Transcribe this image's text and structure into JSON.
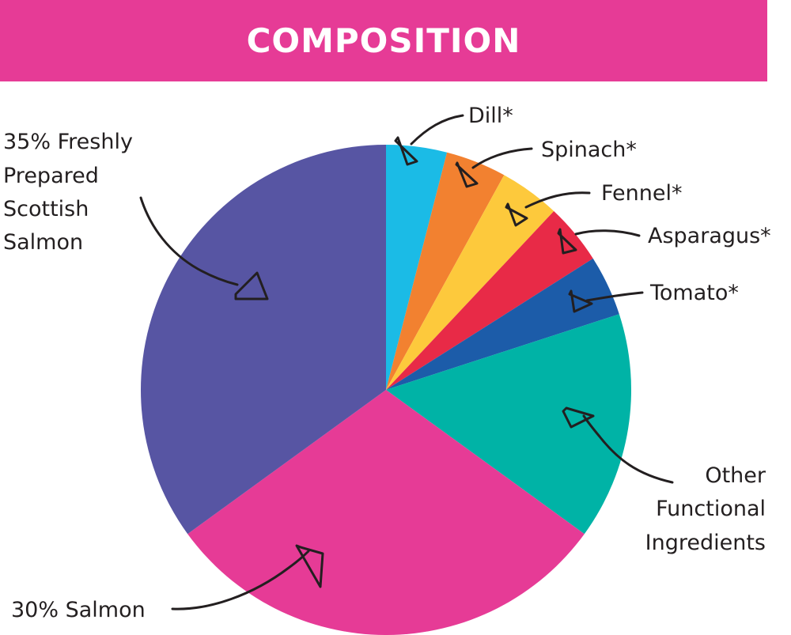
{
  "header": {
    "title": "COMPOSITION",
    "background": "#e63b96"
  },
  "chart_data": {
    "type": "pie",
    "title": "COMPOSITION",
    "start": "12 o'clock",
    "direction": "clockwise",
    "slices": [
      {
        "label": "Dill*",
        "value": 4,
        "color": "#1bbbe6"
      },
      {
        "label": "Spinach*",
        "value": 4,
        "color": "#f28130"
      },
      {
        "label": "Fennel*",
        "value": 4,
        "color": "#fdc93c"
      },
      {
        "label": "Asparagus*",
        "value": 4,
        "color": "#e82a47"
      },
      {
        "label": "Tomato*",
        "value": 4,
        "color": "#1c5ca9"
      },
      {
        "label": "Other Functional Ingredients",
        "value": 15,
        "color": "#00b3a6"
      },
      {
        "label": "30% Salmon",
        "value": 30,
        "color": "#e63b96"
      },
      {
        "label": "35% Freshly Prepared Scottish Salmon",
        "value": 35,
        "color": "#5755a3"
      }
    ]
  },
  "labels": {
    "dill": "Dill*",
    "spinach": "Spinach*",
    "fennel": "Fennel*",
    "asparagus": "Asparagus*",
    "tomato": "Tomato*",
    "other": [
      "Other",
      "Functional",
      "Ingredients"
    ],
    "salmon30": "30% Salmon",
    "scottish": [
      "35% Freshly",
      "Prepared",
      "Scottish",
      "Salmon"
    ]
  }
}
